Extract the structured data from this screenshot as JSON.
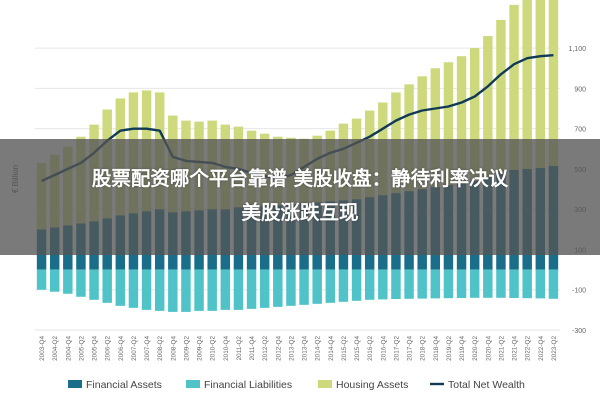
{
  "overlay": {
    "line1": "股票配资哪个平台靠谱 美股收盘：静待利率决议",
    "line2": "美股涨跌互现"
  },
  "chart_data": {
    "type": "bar+line",
    "ylabel": "€ Billion",
    "ylim": [
      -300,
      1200
    ],
    "yticks": [
      -300,
      -100,
      100,
      300,
      500,
      700,
      900,
      1100
    ],
    "ytick_labels": [
      "-300",
      "-100",
      "100",
      "300",
      "500",
      "700",
      "900",
      "1,100"
    ],
    "grid": true,
    "legend_position": "bottom",
    "colors": {
      "financial_assets": "#1a6e8a",
      "financial_liabilities": "#4fc3c7",
      "housing_assets": "#cdd97c",
      "total_net_wealth": "#103a55"
    },
    "categories": [
      "2003-Q4",
      "2004-Q2",
      "2004-Q4",
      "2005-Q2",
      "2005-Q4",
      "2006-Q2",
      "2006-Q4",
      "2007-Q2",
      "2007-Q4",
      "2008-Q2",
      "2008-Q4",
      "2009-Q2",
      "2009-Q4",
      "2010-Q2",
      "2010-Q4",
      "2011-Q2",
      "2011-Q4",
      "2012-Q2",
      "2012-Q4",
      "2013-Q2",
      "2013-Q4",
      "2014-Q2",
      "2014-Q4",
      "2015-Q2",
      "2015-Q4",
      "2016-Q2",
      "2016-Q4",
      "2017-Q2",
      "2017-Q4",
      "2018-Q2",
      "2018-Q4",
      "2019-Q2",
      "2019-Q4",
      "2020-Q2",
      "2020-Q4",
      "2021-Q2",
      "2021-Q4",
      "2022-Q2",
      "2022-Q4",
      "2023-Q2"
    ],
    "series": [
      {
        "name": "Financial Assets",
        "kind": "bar",
        "values": [
          200,
          210,
          220,
          230,
          240,
          255,
          270,
          280,
          290,
          300,
          285,
          290,
          295,
          300,
          300,
          310,
          310,
          315,
          320,
          325,
          330,
          335,
          340,
          345,
          350,
          360,
          370,
          380,
          390,
          400,
          410,
          420,
          430,
          440,
          460,
          480,
          495,
          500,
          505,
          515
        ]
      },
      {
        "name": "Financial Liabilities",
        "kind": "bar",
        "values": [
          -100,
          -110,
          -120,
          -135,
          -150,
          -165,
          -180,
          -190,
          -200,
          -205,
          -210,
          -210,
          -205,
          -205,
          -200,
          -200,
          -195,
          -190,
          -185,
          -180,
          -175,
          -170,
          -165,
          -160,
          -155,
          -150,
          -148,
          -146,
          -145,
          -144,
          -143,
          -142,
          -141,
          -140,
          -140,
          -140,
          -141,
          -142,
          -143,
          -145
        ]
      },
      {
        "name": "Housing Assets",
        "kind": "bar",
        "values": [
          330,
          360,
          390,
          430,
          480,
          540,
          580,
          600,
          600,
          580,
          480,
          450,
          440,
          440,
          420,
          400,
          380,
          360,
          340,
          330,
          320,
          330,
          350,
          380,
          400,
          430,
          460,
          500,
          530,
          560,
          590,
          610,
          630,
          660,
          700,
          760,
          820,
          880,
          900,
          880
        ]
      },
      {
        "name": "Total Net Wealth",
        "kind": "line",
        "values": [
          440,
          470,
          500,
          530,
          580,
          640,
          690,
          700,
          700,
          690,
          560,
          540,
          535,
          530,
          510,
          500,
          480,
          465,
          450,
          470,
          510,
          550,
          580,
          600,
          630,
          660,
          700,
          740,
          770,
          790,
          800,
          810,
          830,
          860,
          910,
          970,
          1020,
          1050,
          1060,
          1065
        ]
      }
    ]
  }
}
